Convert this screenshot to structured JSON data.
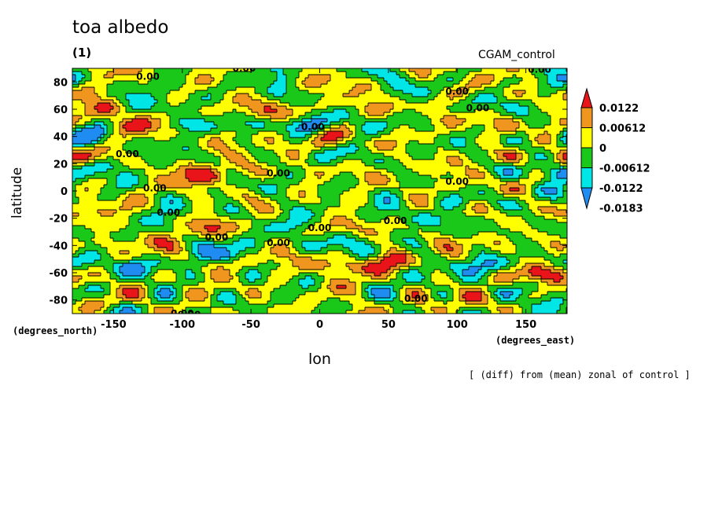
{
  "chart_data": {
    "type": "heatmap",
    "title": "toa albedo",
    "subtitle": "(1)",
    "source_label": "CGAM_control",
    "xlabel": "lon",
    "ylabel": "latitude",
    "x_unit": "(degrees_east)",
    "y_unit": "(degrees_north)",
    "note": "[ (diff) from (mean) zonal of control ]",
    "xlim": [
      -180,
      180
    ],
    "ylim": [
      -90,
      90
    ],
    "x_ticks": [
      -150,
      -100,
      -50,
      0,
      50,
      100,
      150
    ],
    "y_ticks": [
      80,
      60,
      40,
      20,
      0,
      -20,
      -40,
      -60,
      -80
    ],
    "contour_label": "0.00",
    "colorbar": {
      "levels": [
        "0.0122",
        "0.00612",
        "0",
        "-0.00612",
        "-0.0122",
        "-0.0183"
      ],
      "colors": [
        "#e8141a",
        "#f0961e",
        "#ffff00",
        "#19c819",
        "#00e6e6",
        "#1e8cf0"
      ]
    },
    "features": [
      {
        "lon": -85,
        "lat": 12,
        "value": 0.014
      },
      {
        "lon": -90,
        "lat": 18,
        "value": 0.008
      },
      {
        "lon": -155,
        "lat": 62,
        "value": 0.01
      },
      {
        "lon": -130,
        "lat": 50,
        "value": 0.008
      },
      {
        "lon": 160,
        "lat": -60,
        "value": 0.013
      },
      {
        "lon": 20,
        "lat": -55,
        "value": 0.012
      },
      {
        "lon": 50,
        "lat": -50,
        "value": 0.008
      },
      {
        "lon": -155,
        "lat": -25,
        "value": 0.009
      },
      {
        "lon": -80,
        "lat": -25,
        "value": 0.008
      },
      {
        "lon": -45,
        "lat": 58,
        "value": 0.007
      },
      {
        "lon": 40,
        "lat": 60,
        "value": 0.007
      },
      {
        "lon": 95,
        "lat": 55,
        "value": 0.007
      },
      {
        "lon": 130,
        "lat": 25,
        "value": 0.006
      },
      {
        "lon": 80,
        "lat": 18,
        "value": 0.006
      },
      {
        "lon": -30,
        "lat": -60,
        "value": 0.006
      },
      {
        "lon": -100,
        "lat": 50,
        "value": -0.013
      },
      {
        "lon": -20,
        "lat": 50,
        "value": -0.01
      },
      {
        "lon": 60,
        "lat": 55,
        "value": -0.008
      },
      {
        "lon": -140,
        "lat": -55,
        "value": -0.012
      },
      {
        "lon": -70,
        "lat": -45,
        "value": -0.013
      },
      {
        "lon": 120,
        "lat": -55,
        "value": -0.011
      },
      {
        "lon": 170,
        "lat": 15,
        "value": -0.012
      },
      {
        "lon": -165,
        "lat": 20,
        "value": -0.008
      },
      {
        "lon": -20,
        "lat": -25,
        "value": -0.01
      },
      {
        "lon": 70,
        "lat": -20,
        "value": -0.008
      },
      {
        "lon": 100,
        "lat": -5,
        "value": -0.006
      },
      {
        "lon": -120,
        "lat": 80,
        "value": -0.005
      },
      {
        "lon": 20,
        "lat": -80,
        "value": 0.005
      },
      {
        "lon": -50,
        "lat": 30,
        "value": 0.006
      }
    ]
  }
}
